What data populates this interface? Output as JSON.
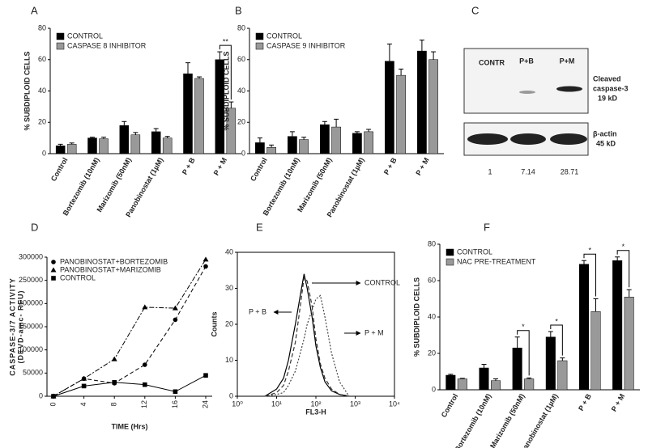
{
  "chart_data": [
    {
      "type": "bar",
      "panel": "A",
      "ylabel": "% SUBDIPLOID CELLS",
      "categories": [
        "Control",
        "Bortezomib (10nM)",
        "Marizomib (50nM)",
        "Panobinostat (1µM)",
        "P + B",
        "P + M"
      ],
      "series": [
        {
          "name": "CONTROL",
          "color": "#000000",
          "values": [
            5,
            10,
            18,
            14,
            51,
            60
          ],
          "errors": [
            1,
            0.5,
            2.5,
            2,
            7,
            5
          ]
        },
        {
          "name": "CASPASE 8 INHIBITOR",
          "color": "#999999",
          "values": [
            6,
            9.5,
            12,
            10,
            48,
            29
          ],
          "errors": [
            0.8,
            1,
            1.5,
            1,
            1,
            4
          ]
        }
      ],
      "significance": [
        null,
        null,
        null,
        null,
        null,
        "**"
      ],
      "ylim": [
        0,
        80
      ],
      "yticks": [
        0,
        20,
        40,
        60,
        80
      ],
      "legend": "upper-left"
    },
    {
      "type": "bar",
      "panel": "B",
      "ylabel": "% SUBDIPLOID CELLS",
      "categories": [
        "Control",
        "Bortezomib (10nM)",
        "Marizomib (50nM)",
        "Panobinostat (1µM)",
        "P + B",
        "P + M"
      ],
      "series": [
        {
          "name": "CONTROL",
          "color": "#000000",
          "values": [
            7,
            11,
            18.5,
            13,
            59,
            65.5
          ],
          "errors": [
            3,
            3,
            2,
            1,
            11,
            7
          ]
        },
        {
          "name": "CASPASE 9 INHIBITOR",
          "color": "#999999",
          "values": [
            4,
            9,
            17,
            14,
            50,
            60
          ],
          "errors": [
            1.5,
            1.5,
            5,
            1.5,
            4,
            5
          ]
        }
      ],
      "ylim": [
        0,
        80
      ],
      "yticks": [
        0,
        20,
        40,
        60,
        80
      ],
      "legend": "upper-left"
    },
    {
      "type": "line",
      "panel": "D",
      "ylabel": [
        "CASPASE-3/7 ACTIVITY",
        "(DEVD-amc- RFU)"
      ],
      "xlabel": "TIME (Hrs)",
      "categories": [
        "0",
        "4",
        "8",
        "12",
        "16",
        "24"
      ],
      "series": [
        {
          "name": "PANOBINOSTAT+BORTEZOMIB",
          "color": "#000000",
          "marker": "circle",
          "linestyle": "dashed",
          "values": [
            0,
            38000,
            28000,
            68000,
            165000,
            280000
          ]
        },
        {
          "name": "PANOBINOSTAT+MARIZOMIB",
          "color": "#000000",
          "marker": "triangle",
          "linestyle": "dashdot",
          "values": [
            0,
            38000,
            80000,
            192000,
            190000,
            295000
          ]
        },
        {
          "name": "CONTROL",
          "color": "#000000",
          "marker": "square",
          "linestyle": "solid",
          "values": [
            0,
            22000,
            30000,
            25000,
            10000,
            45000
          ]
        }
      ],
      "ylim": [
        0,
        300000
      ],
      "yticks": [
        0,
        50000,
        100000,
        150000,
        200000,
        250000,
        300000
      ],
      "legend": "upper-left"
    },
    {
      "type": "histogram-line",
      "panel": "E",
      "ylabel": "Counts",
      "xlabel": "FL3-H",
      "xscale": "log",
      "x": [
        5,
        10,
        15,
        20,
        30,
        40,
        50,
        60,
        80,
        100,
        130,
        170,
        250,
        400,
        700
      ],
      "series": [
        {
          "name": "CONTROL",
          "color": "#000000",
          "linestyle": "solid",
          "values": [
            0,
            2,
            5,
            10,
            20,
            28,
            34,
            30,
            22,
            14,
            8,
            4,
            1.5,
            0.5,
            0
          ]
        },
        {
          "name": "P + B",
          "color": "#333333",
          "linestyle": "dashed",
          "values": [
            0,
            1,
            3,
            7,
            15,
            25,
            33,
            32,
            25,
            16,
            9,
            5,
            2,
            0.5,
            0
          ]
        },
        {
          "name": "P + M",
          "color": "#444444",
          "linestyle": "dotted",
          "values": [
            0,
            0.5,
            1,
            3,
            7,
            12,
            16,
            20,
            24,
            27,
            28,
            22,
            12,
            4,
            0
          ]
        }
      ],
      "xlim": [
        1,
        10000
      ],
      "xticks": [
        {
          "value": 1,
          "label": "10⁰"
        },
        {
          "value": 10,
          "label": "10¹"
        },
        {
          "value": 100,
          "label": "10²"
        },
        {
          "value": 1000,
          "label": "10³"
        },
        {
          "value": 10000,
          "label": "10⁴"
        }
      ],
      "ylim": [
        0,
        40
      ],
      "yticks": [
        0,
        10,
        20,
        30,
        40
      ]
    },
    {
      "type": "bar",
      "panel": "F",
      "ylabel": "% SUBDIPLOID CELLS",
      "categories": [
        "Control",
        "Bortezomib (10nM)",
        "Marizomib (50nM)",
        "Panobinostat (1µM)",
        "P + B",
        "P + M"
      ],
      "series": [
        {
          "name": "CONTROL",
          "color": "#000000",
          "values": [
            8,
            12,
            23,
            29,
            69,
            71
          ],
          "errors": [
            0.5,
            2,
            6,
            3,
            2,
            2
          ]
        },
        {
          "name": "NAC PRE-TREATMENT",
          "color": "#999999",
          "values": [
            6,
            5,
            6,
            16,
            43,
            51
          ],
          "errors": [
            0.3,
            1,
            0.5,
            1.5,
            7,
            4
          ]
        }
      ],
      "significance": [
        null,
        null,
        "*",
        "*",
        "*",
        "*"
      ],
      "ylim": [
        0,
        80
      ],
      "yticks": [
        0,
        20,
        40,
        60,
        80
      ],
      "legend": "upper-left"
    }
  ],
  "blot": {
    "panel": "C",
    "lanes": [
      "CONTR",
      "P+B",
      "P+M"
    ],
    "bands": [
      [
        "Cleaved",
        "caspase-3",
        "19 kD"
      ],
      [
        "β-actin",
        "45 kD"
      ]
    ],
    "densitometry": [
      1,
      7.14,
      28.71
    ]
  }
}
